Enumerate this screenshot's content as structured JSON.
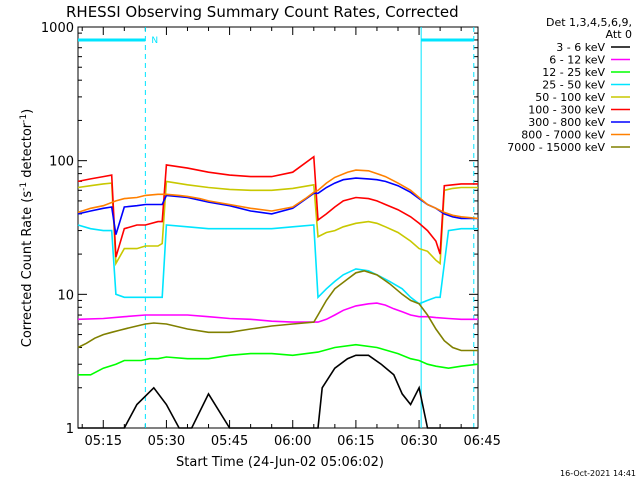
{
  "title": "RHESSI Observing Summary Count Rates, Corrected",
  "footer_date": "16-Oct-2021 14:41",
  "colors": {
    "background": "#ffffff",
    "axes": "#000000",
    "attenuator": "#00e5ff"
  },
  "chart_data": {
    "type": "line",
    "title": "RHESSI Observing Summary Count Rates, Corrected",
    "xlabel": "Start Time (24-Jun-02 05:06:02)",
    "ylabel": "Corrected Count Rate (s⁻¹ detector⁻¹)",
    "xlim_minutes": [
      9,
      104
    ],
    "ylim": [
      1,
      1000
    ],
    "yscale": "log",
    "x_ticks": [
      {
        "label": "05:15",
        "t": 15
      },
      {
        "label": "05:30",
        "t": 30
      },
      {
        "label": "05:45",
        "t": 45
      },
      {
        "label": "06:00",
        "t": 60
      },
      {
        "label": "06:15",
        "t": 75
      },
      {
        "label": "06:30",
        "t": 90
      },
      {
        "label": "06:45",
        "t": 105
      }
    ],
    "y_ticks": [
      {
        "label": "1",
        "v": 1
      },
      {
        "label": "10",
        "v": 10
      },
      {
        "label": "100",
        "v": 100
      },
      {
        "label": "1000",
        "v": 1000
      }
    ],
    "legend_position": "right",
    "legend_header": [
      "Det 1,3,4,5,6,9,",
      "Att 0"
    ],
    "attenuator": {
      "segments": [
        [
          9,
          25
        ],
        [
          90.5,
          103
        ]
      ],
      "level": 800,
      "marker_label": "N",
      "dashed_lines": [
        25,
        103
      ],
      "solid_lines": [
        90.5
      ]
    },
    "series": [
      {
        "name": "3 - 6 keV",
        "color": "#000000",
        "x": [
          9,
          15,
          20,
          23,
          27,
          30,
          33,
          36,
          40,
          45,
          48,
          53,
          58,
          60,
          66,
          67,
          70,
          73,
          75,
          78,
          81,
          84,
          86,
          88,
          90,
          92,
          94,
          97,
          100,
          104
        ],
        "y": [
          1.0,
          1.0,
          1.0,
          1.5,
          2.0,
          1.5,
          1.0,
          1.0,
          1.8,
          1.0,
          1.0,
          1.0,
          1.0,
          1.0,
          1.0,
          2.0,
          2.8,
          3.3,
          3.5,
          3.5,
          3.0,
          2.5,
          1.8,
          1.5,
          2.0,
          1.0,
          1.0,
          1.0,
          1.0,
          1.0
        ]
      },
      {
        "name": "6 - 12 keV",
        "color": "#ff00ff",
        "x": [
          9,
          15,
          20,
          25,
          30,
          35,
          40,
          45,
          50,
          55,
          60,
          66,
          68,
          70,
          72,
          75,
          78,
          80,
          82,
          84,
          86,
          88,
          90,
          92,
          94,
          97,
          100,
          104
        ],
        "y": [
          6.5,
          6.6,
          6.8,
          7.0,
          7.0,
          7.0,
          6.8,
          6.6,
          6.5,
          6.3,
          6.2,
          6.2,
          6.5,
          7.0,
          7.6,
          8.2,
          8.5,
          8.6,
          8.3,
          7.8,
          7.4,
          7.0,
          6.8,
          6.8,
          6.7,
          6.6,
          6.5,
          6.5
        ]
      },
      {
        "name": "12 - 25 keV",
        "color": "#00ff00",
        "x": [
          9,
          12,
          15,
          18,
          20,
          24,
          26,
          28,
          30,
          35,
          40,
          45,
          50,
          55,
          60,
          66,
          70,
          75,
          80,
          85,
          88,
          90,
          92,
          94,
          97,
          100,
          104
        ],
        "y": [
          2.5,
          2.5,
          2.8,
          3.0,
          3.2,
          3.2,
          3.3,
          3.3,
          3.4,
          3.3,
          3.3,
          3.5,
          3.6,
          3.6,
          3.5,
          3.7,
          4.0,
          4.2,
          4.0,
          3.6,
          3.3,
          3.2,
          3.0,
          2.9,
          2.8,
          2.9,
          3.0
        ]
      },
      {
        "name": "25 - 50 keV",
        "color": "#00e5ff",
        "x": [
          9,
          12,
          15,
          17,
          18,
          20,
          22,
          23,
          24,
          26,
          29,
          30,
          35,
          40,
          45,
          50,
          55,
          60,
          65,
          66,
          68,
          70,
          72,
          75,
          78,
          80,
          83,
          86,
          88,
          90,
          92,
          94,
          95,
          97,
          100,
          104
        ],
        "y": [
          33,
          31,
          30,
          30,
          10,
          9.5,
          9.5,
          9.5,
          9.5,
          9.5,
          9.5,
          33,
          32,
          31,
          31,
          31,
          31,
          32,
          33,
          9.5,
          11,
          12.5,
          14,
          15.5,
          15,
          14,
          12.5,
          11,
          9.5,
          8.5,
          9.0,
          9.5,
          9.5,
          30,
          31,
          31
        ]
      },
      {
        "name": "50 - 100 keV",
        "color": "#c8c800",
        "x": [
          9,
          12,
          15,
          17,
          18,
          20,
          23,
          25,
          28,
          29,
          30,
          35,
          40,
          45,
          50,
          55,
          60,
          65,
          66,
          68,
          70,
          72,
          75,
          78,
          80,
          82,
          85,
          88,
          90,
          92,
          94,
          95,
          96,
          98,
          100,
          104
        ],
        "y": [
          63,
          65,
          67,
          68,
          17,
          22,
          22,
          23,
          23,
          24,
          70,
          66,
          63,
          61,
          60,
          60,
          62,
          66,
          27,
          29,
          30,
          32,
          34,
          35,
          34,
          32,
          29,
          25,
          22,
          21,
          18,
          17,
          60,
          62,
          63,
          63
        ]
      },
      {
        "name": "100 - 300 keV",
        "color": "#ff0000",
        "x": [
          9,
          12,
          15,
          17,
          18,
          20,
          23,
          25,
          28,
          29,
          30,
          35,
          40,
          45,
          50,
          55,
          60,
          65,
          66,
          68,
          70,
          72,
          75,
          78,
          80,
          82,
          85,
          88,
          90,
          92,
          94,
          95,
          96,
          98,
          100,
          104
        ],
        "y": [
          70,
          73,
          76,
          78,
          19,
          31,
          33,
          33,
          35,
          35,
          93,
          88,
          82,
          78,
          76,
          76,
          82,
          107,
          36,
          40,
          45,
          50,
          53,
          52,
          50,
          47,
          43,
          38,
          34,
          30,
          25,
          20,
          65,
          66,
          67,
          67
        ]
      },
      {
        "name": "300 - 800 keV",
        "color": "#0000ff",
        "x": [
          9,
          12,
          15,
          17,
          18,
          20,
          23,
          25,
          28,
          29,
          30,
          35,
          40,
          45,
          50,
          55,
          60,
          65,
          66,
          68,
          70,
          72,
          75,
          78,
          80,
          82,
          85,
          88,
          90,
          92,
          94,
          96,
          98,
          100,
          104
        ],
        "y": [
          40,
          42,
          44,
          45,
          28,
          45,
          46,
          47,
          47,
          47,
          55,
          53,
          49,
          46,
          42,
          40,
          44,
          57,
          57,
          63,
          68,
          72,
          74,
          73,
          72,
          70,
          65,
          58,
          52,
          47,
          44,
          40,
          38,
          37,
          37
        ]
      },
      {
        "name": "800 - 7000 keV",
        "color": "#ff8000",
        "x": [
          9,
          12,
          15,
          18,
          20,
          23,
          25,
          28,
          30,
          33,
          35,
          38,
          40,
          45,
          50,
          55,
          60,
          63,
          65,
          66,
          68,
          70,
          73,
          75,
          78,
          80,
          82,
          85,
          88,
          90,
          92,
          94,
          96,
          98,
          100,
          104
        ],
        "y": [
          41,
          44,
          46,
          50,
          52,
          53,
          55,
          56,
          56,
          55,
          54,
          52,
          50,
          47,
          44,
          42,
          45,
          52,
          58,
          60,
          68,
          75,
          82,
          85,
          84,
          80,
          76,
          68,
          60,
          53,
          47,
          44,
          41,
          39,
          38,
          37
        ]
      },
      {
        "name": "7000 - 15000 keV",
        "color": "#808000",
        "x": [
          9,
          11,
          13,
          15,
          17,
          19,
          21,
          23,
          25,
          27,
          30,
          35,
          40,
          45,
          50,
          55,
          60,
          65,
          66,
          68,
          70,
          73,
          75,
          77,
          80,
          83,
          86,
          88,
          90,
          92,
          94,
          96,
          98,
          100,
          104
        ],
        "y": [
          4.0,
          4.3,
          4.7,
          5.0,
          5.2,
          5.4,
          5.6,
          5.8,
          6.0,
          6.1,
          6.0,
          5.5,
          5.2,
          5.2,
          5.5,
          5.8,
          6.0,
          6.2,
          7.0,
          9.0,
          11,
          13,
          14.5,
          15,
          14,
          12,
          10,
          9.0,
          8.5,
          7.0,
          5.5,
          4.5,
          4.0,
          3.8,
          3.8
        ]
      }
    ]
  }
}
